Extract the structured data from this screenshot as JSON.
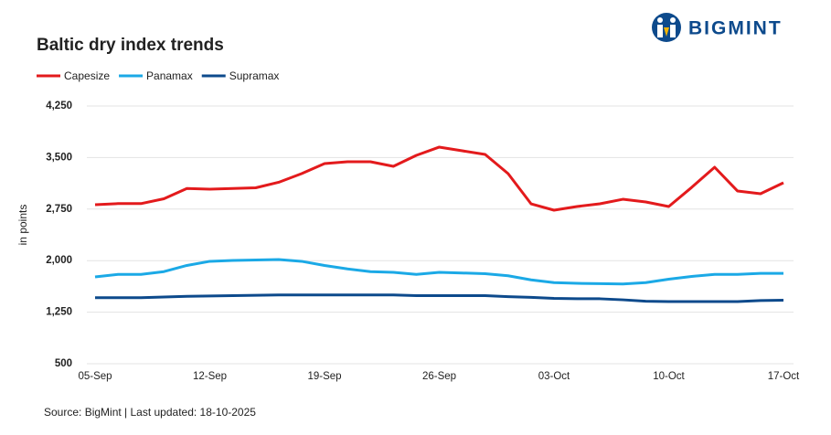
{
  "brand": "BIGMINT",
  "chart_data": {
    "type": "line",
    "title": "Baltic dry index trends",
    "y_label": "in points",
    "source": "Source: BigMint | Last updated: 18-10-2025",
    "categories": [
      "05-Sep",
      null,
      null,
      null,
      null,
      "12-Sep",
      null,
      null,
      null,
      null,
      "19-Sep",
      null,
      null,
      null,
      null,
      "26-Sep",
      null,
      null,
      null,
      null,
      "03-Oct",
      null,
      null,
      null,
      null,
      "10-Oct",
      null,
      null,
      null,
      null,
      "17-Oct"
    ],
    "series": [
      {
        "name": "Capesize",
        "color": "#e31a1c",
        "values": [
          2814,
          2830,
          2830,
          2900,
          3050,
          3040,
          3050,
          3060,
          3140,
          3266,
          3412,
          3439,
          3439,
          3372,
          3532,
          3652,
          3598,
          3545,
          3266,
          2827,
          2734,
          2787,
          2827,
          2893,
          2854,
          2787,
          3066,
          3359,
          3013,
          2973,
          3133
        ]
      },
      {
        "name": "Panamax",
        "color": "#1ba9e6",
        "values": [
          1763,
          1800,
          1800,
          1840,
          1930,
          1990,
          2002,
          2010,
          2016,
          1990,
          1930,
          1880,
          1840,
          1830,
          1800,
          1830,
          1820,
          1810,
          1780,
          1720,
          1680,
          1670,
          1665,
          1660,
          1680,
          1730,
          1770,
          1800,
          1800,
          1815,
          1815
        ]
      },
      {
        "name": "Supramax",
        "color": "#0d4a8c",
        "values": [
          1460,
          1460,
          1460,
          1470,
          1480,
          1485,
          1490,
          1495,
          1500,
          1500,
          1500,
          1500,
          1500,
          1500,
          1490,
          1490,
          1490,
          1490,
          1475,
          1465,
          1450,
          1445,
          1445,
          1430,
          1410,
          1405,
          1405,
          1405,
          1405,
          1420,
          1425
        ]
      }
    ],
    "ylim": [
      500,
      4250
    ],
    "yticks": [
      {
        "value": 500,
        "label": "500"
      },
      {
        "value": 1250,
        "label": "1,250"
      },
      {
        "value": 2000,
        "label": "2,000"
      },
      {
        "value": 2750,
        "label": "2,750"
      },
      {
        "value": 3500,
        "label": "3,500"
      },
      {
        "value": 4250,
        "label": "4,250"
      }
    ],
    "grid": true
  }
}
